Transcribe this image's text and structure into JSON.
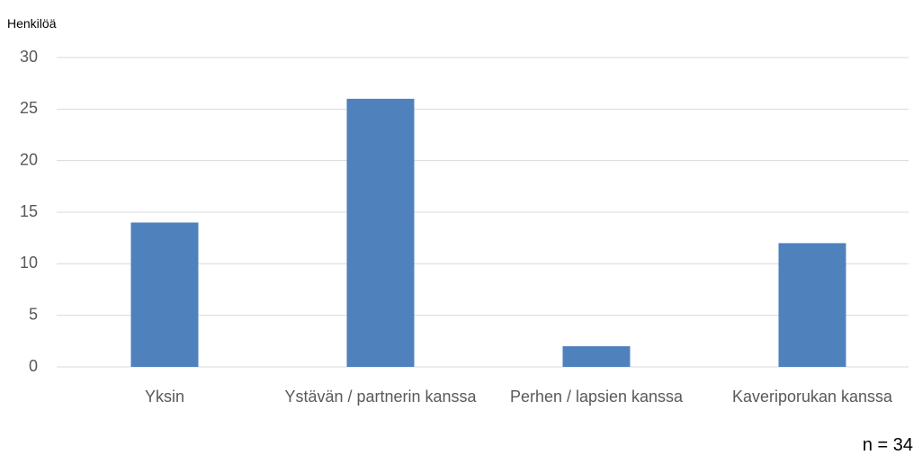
{
  "chart_data": {
    "type": "bar",
    "y_axis_label": "Henkilöä",
    "categories": [
      "Yksin",
      "Ystävän / partnerin kanssa",
      "Perhen / lapsien kanssa",
      "Kaveriporukan kanssa"
    ],
    "values": [
      14,
      26,
      2,
      12
    ],
    "color": "#4f81bd",
    "ylim": [
      0,
      30
    ],
    "yticks": [
      0,
      5,
      10,
      15,
      20,
      25,
      30
    ],
    "grid": true,
    "annotation": "n = 34"
  }
}
